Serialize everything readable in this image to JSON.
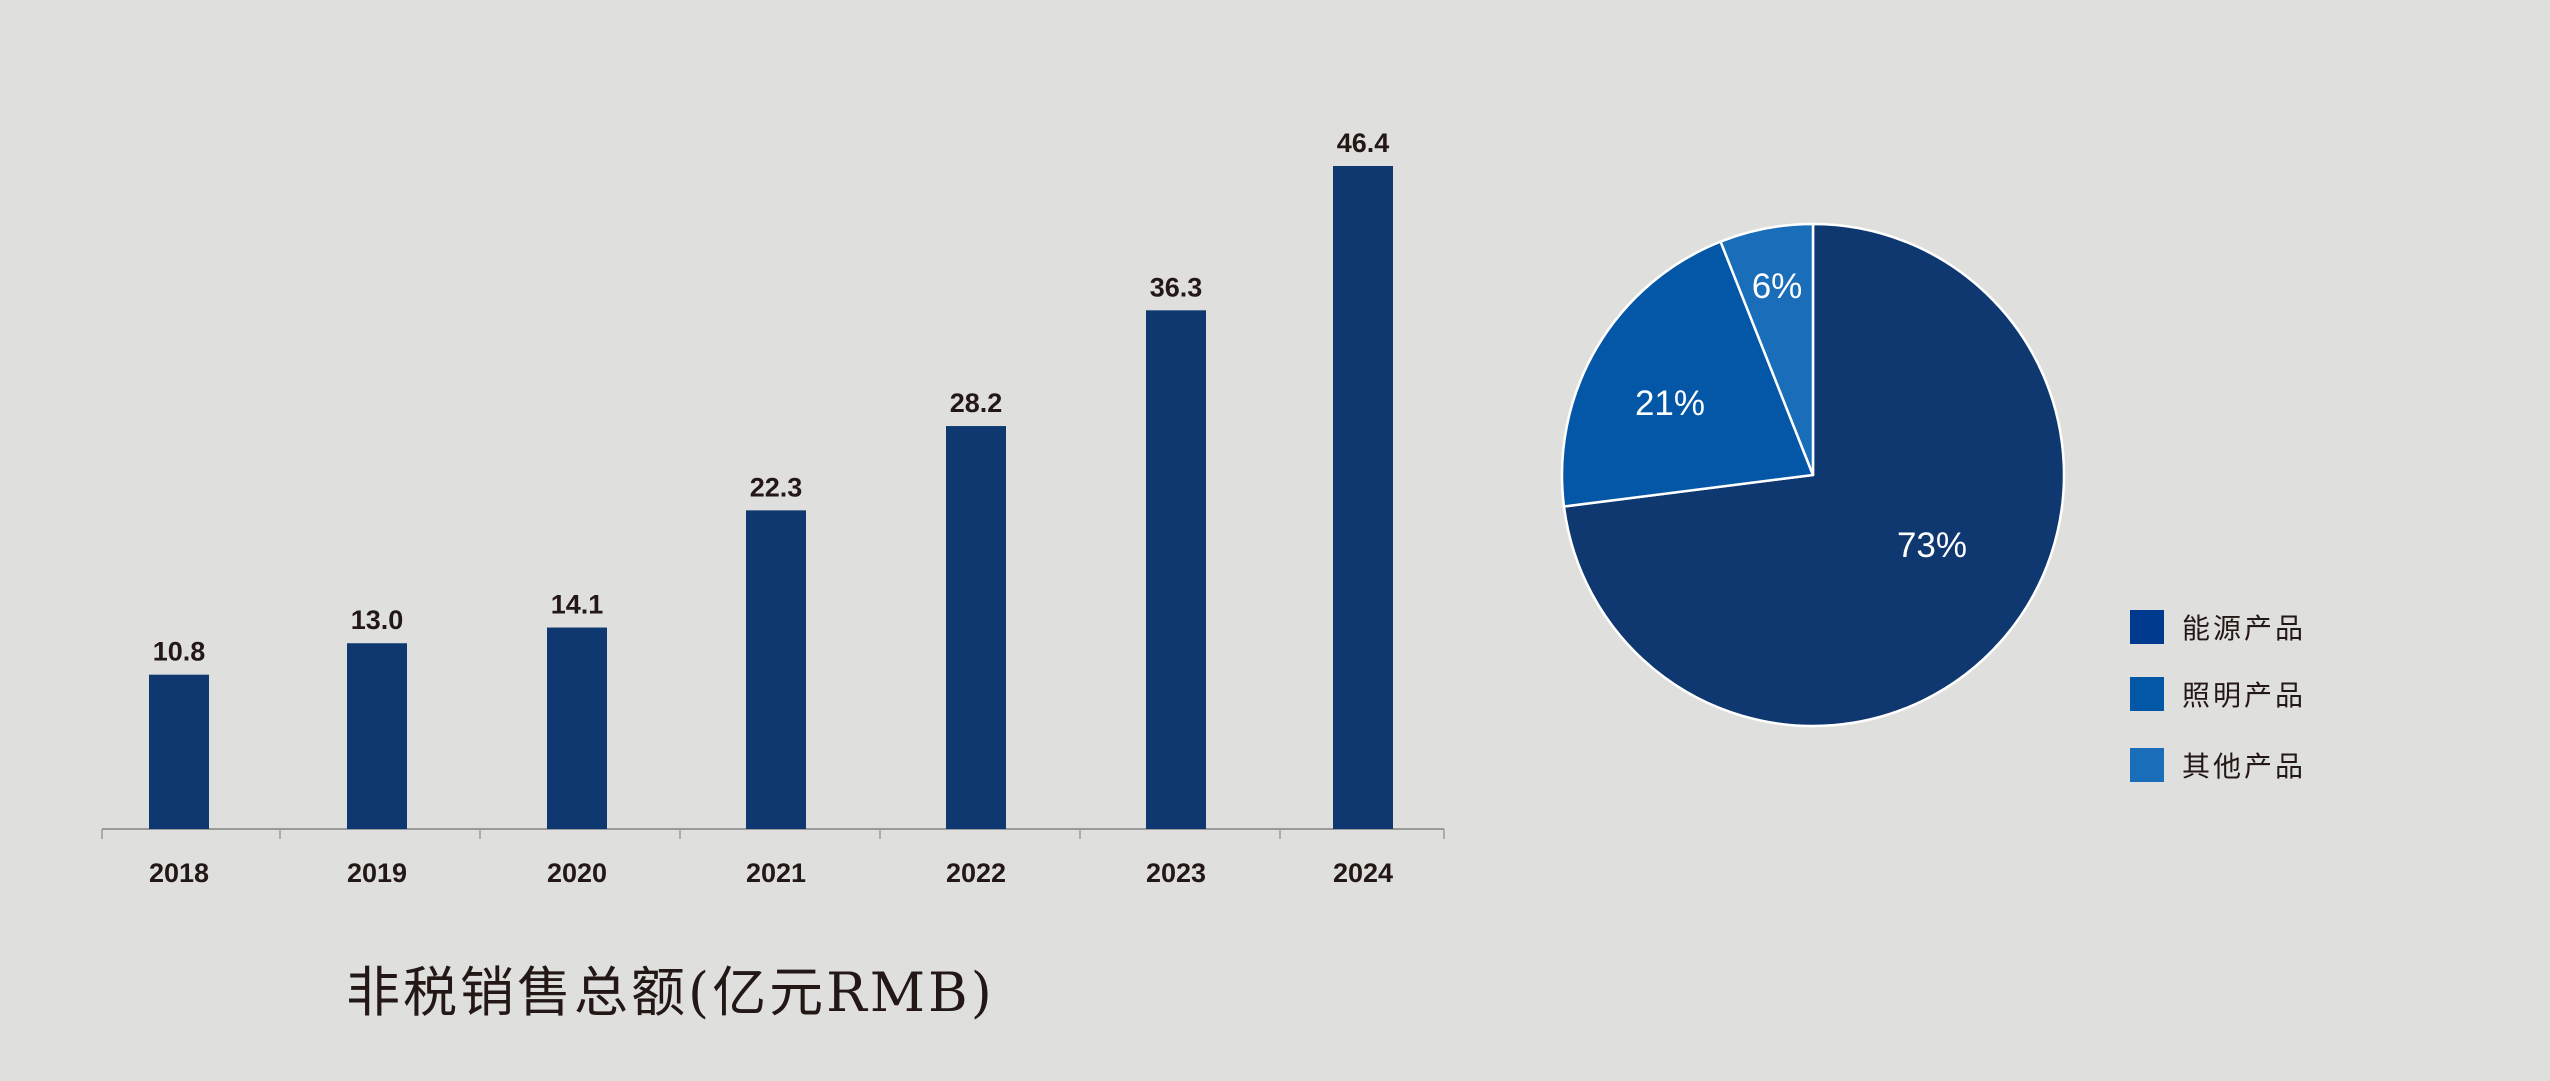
{
  "chart_data": [
    {
      "type": "bar",
      "title": "非税销售总额(亿元RMB)",
      "categories": [
        "2018",
        "2019",
        "2020",
        "2021",
        "2022",
        "2023",
        "2024"
      ],
      "values": [
        10.8,
        13.0,
        14.1,
        22.3,
        28.2,
        36.3,
        46.4
      ],
      "data_labels": [
        "10.8",
        "13.0",
        "14.1",
        "22.3",
        "28.2",
        "36.3",
        "46.4"
      ],
      "ylim": [
        0,
        46.4
      ],
      "grid": false,
      "bar_color": "#0f3870"
    },
    {
      "type": "pie",
      "labels": [
        "能源产品",
        "照明产品",
        "其他产品"
      ],
      "values": [
        73,
        21,
        6
      ],
      "data_labels": [
        "73%",
        "21%",
        "6%"
      ],
      "colors": [
        "#0f3870",
        "#0357a6",
        "#1a6db8"
      ],
      "legend_colors": [
        "#003a8e",
        "#0357a6",
        "#1a6db8"
      ],
      "legend": "right"
    }
  ]
}
